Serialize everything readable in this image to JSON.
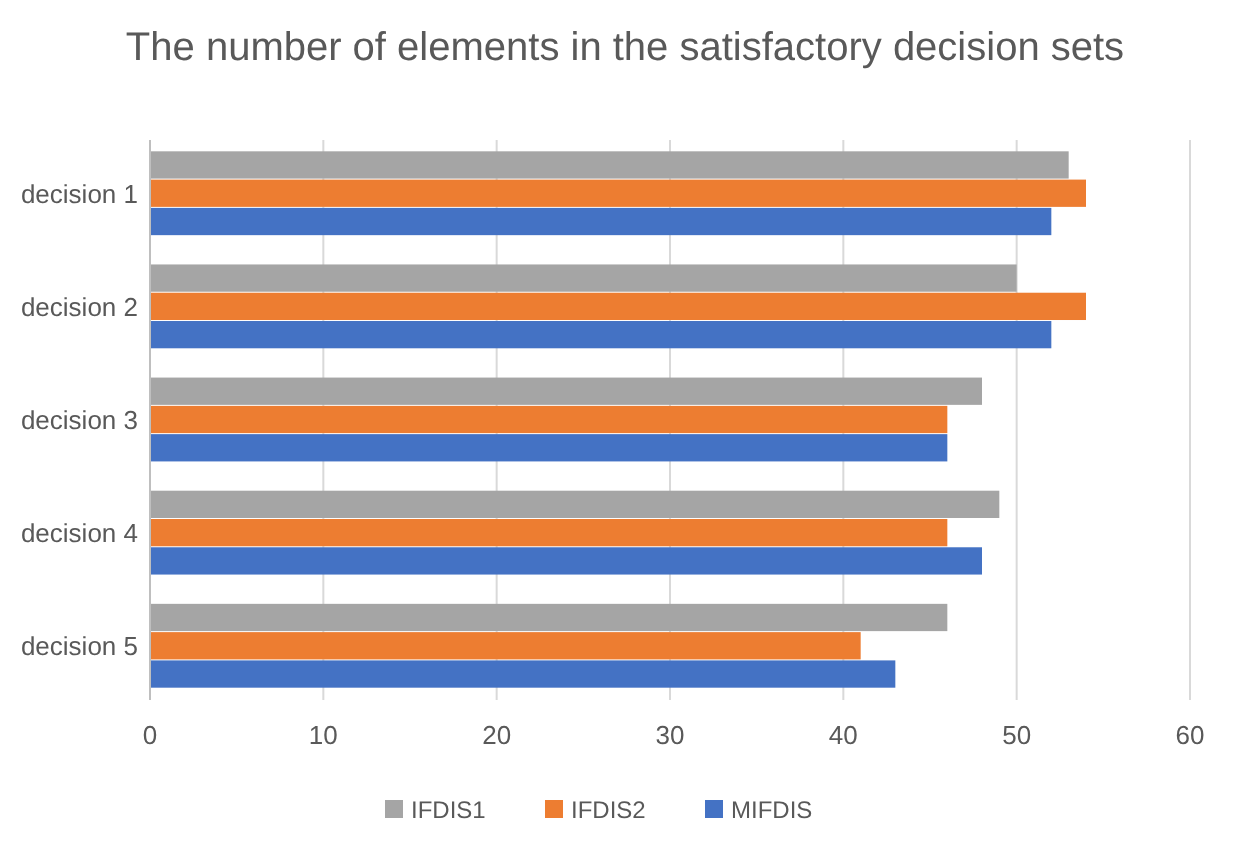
{
  "chart_data": {
    "type": "bar",
    "orientation": "horizontal",
    "title": "The number of elements in the satisfactory decision sets",
    "categories": [
      "decision 1",
      "decision 2",
      "decision 3",
      "decision 4",
      "decision 5"
    ],
    "series": [
      {
        "name": "IFDIS1",
        "color": "#a5a5a5",
        "values": [
          53,
          50,
          48,
          49,
          46
        ]
      },
      {
        "name": "IFDIS2",
        "color": "#ed7d31",
        "values": [
          54,
          54,
          46,
          46,
          41
        ]
      },
      {
        "name": "MIFDIS",
        "color": "#4472c4",
        "values": [
          52,
          52,
          46,
          48,
          43
        ]
      }
    ],
    "xlim": [
      0,
      60
    ],
    "xticks": [
      0,
      10,
      20,
      30,
      40,
      50,
      60
    ],
    "grid": "x",
    "legend": "bottom"
  }
}
